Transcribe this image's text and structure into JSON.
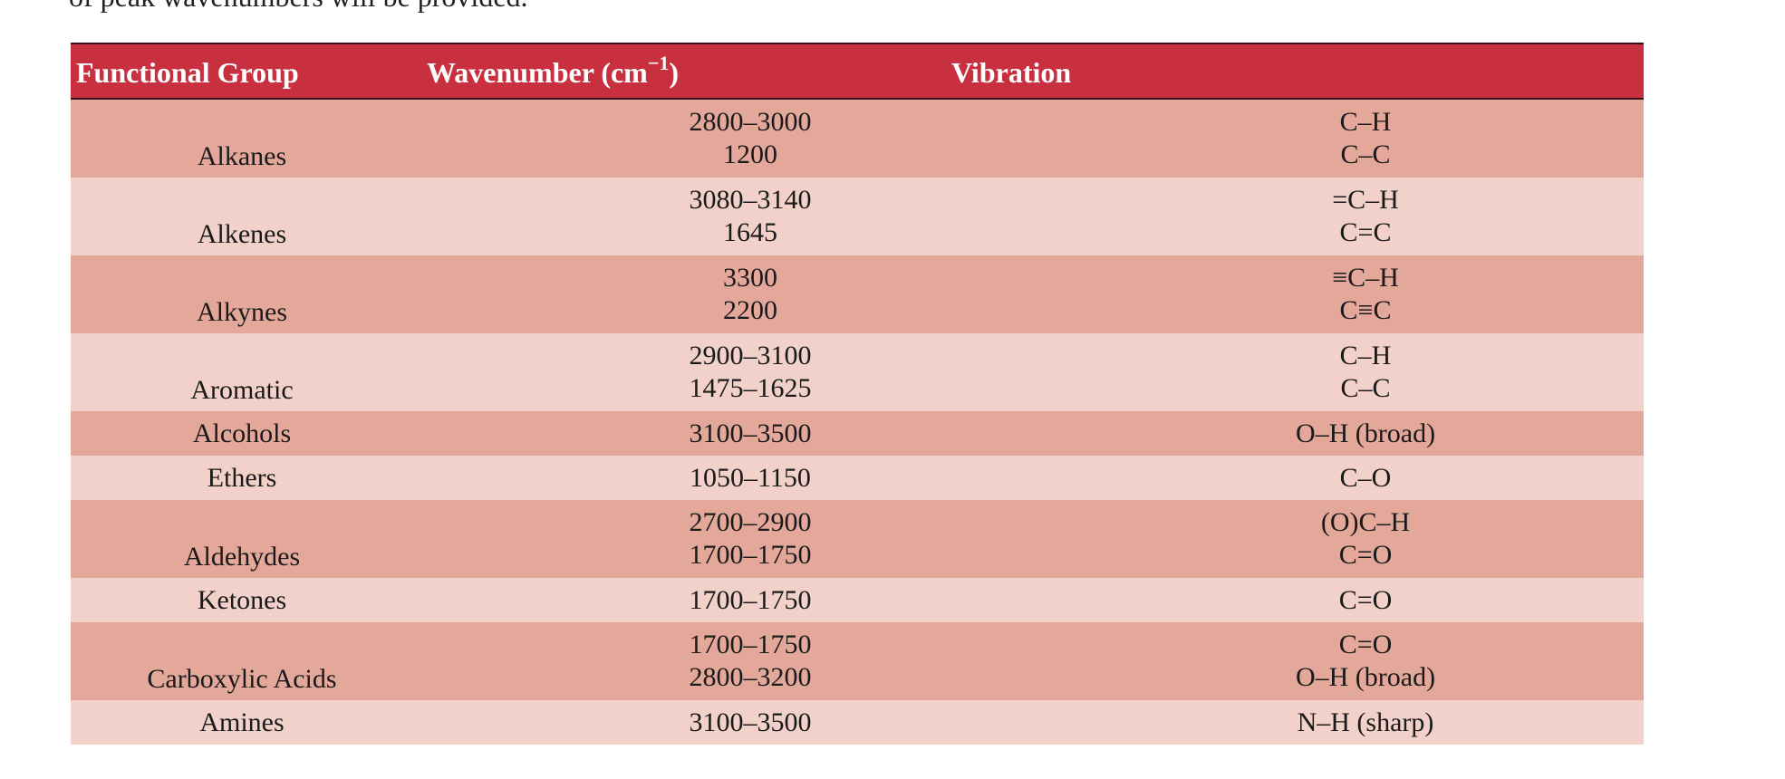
{
  "intro_text": "of peak wavenumbers will be provided.",
  "table": {
    "headers": {
      "group": "Functional Group",
      "wave_prefix": "Wavenumber (cm",
      "wave_sup": "−1",
      "wave_suffix": ")",
      "vibration": "Vibration"
    },
    "rows": [
      {
        "group": "Alkanes",
        "wave": [
          "2800–3000",
          "1200"
        ],
        "vib": [
          "C–H",
          "C–C"
        ]
      },
      {
        "group": "Alkenes",
        "wave": [
          "3080–3140",
          "1645"
        ],
        "vib": [
          "=C–H",
          "C=C"
        ]
      },
      {
        "group": "Alkynes",
        "wave": [
          "3300",
          "2200"
        ],
        "vib": [
          "≡C–H",
          "C≡C"
        ]
      },
      {
        "group": "Aromatic",
        "wave": [
          "2900–3100",
          "1475–1625"
        ],
        "vib": [
          "C–H",
          "C–C"
        ]
      },
      {
        "group": "Alcohols",
        "wave": [
          "3100–3500"
        ],
        "vib": [
          "O–H (broad)"
        ]
      },
      {
        "group": "Ethers",
        "wave": [
          "1050–1150"
        ],
        "vib": [
          "C–O"
        ]
      },
      {
        "group": "Aldehydes",
        "wave": [
          "2700–2900",
          "1700–1750"
        ],
        "vib": [
          "(O)C–H",
          "C=O"
        ]
      },
      {
        "group": "Ketones",
        "wave": [
          "1700–1750"
        ],
        "vib": [
          "C=O"
        ]
      },
      {
        "group": "Carboxylic Acids",
        "wave": [
          "1700–1750",
          "2800–3200"
        ],
        "vib": [
          "C=O",
          "O–H (broad)"
        ]
      },
      {
        "group": "Amines",
        "wave": [
          "3100–3500"
        ],
        "vib": [
          "N–H (sharp)"
        ]
      }
    ]
  },
  "colors": {
    "header_bg": "#c8303f",
    "row_dark": "#e4a89b",
    "row_light": "#f1d1c9"
  }
}
